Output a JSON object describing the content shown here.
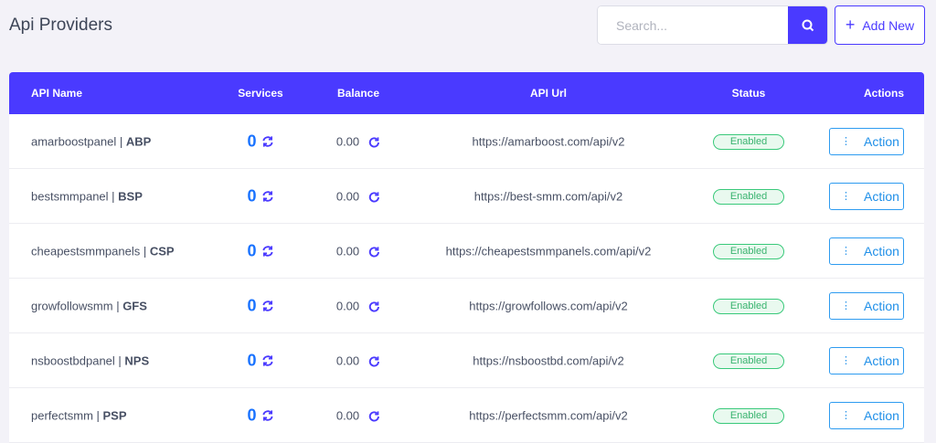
{
  "header": {
    "title": "Api Providers",
    "search_placeholder": "Search...",
    "add_new_label": "Add New"
  },
  "colors": {
    "accent": "#4a3aff",
    "enabled": "#39c97a",
    "action": "#2d9bf0"
  },
  "table": {
    "columns": [
      "API Name",
      "Services",
      "Balance",
      "API Url",
      "Status",
      "Actions"
    ],
    "rows": [
      {
        "name": "amarboostpanel",
        "code": "ABP",
        "services": "0",
        "balance": "0.00",
        "url": "https://amarboost.com/api/v2",
        "status": "Enabled",
        "action": "Action"
      },
      {
        "name": "bestsmmpanel",
        "code": "BSP",
        "services": "0",
        "balance": "0.00",
        "url": "https://best-smm.com/api/v2",
        "status": "Enabled",
        "action": "Action"
      },
      {
        "name": "cheapestsmmpanels",
        "code": "CSP",
        "services": "0",
        "balance": "0.00",
        "url": "https://cheapestsmmpanels.com/api/v2",
        "status": "Enabled",
        "action": "Action"
      },
      {
        "name": "growfollowsmm",
        "code": "GFS",
        "services": "0",
        "balance": "0.00",
        "url": "https://growfollows.com/api/v2",
        "status": "Enabled",
        "action": "Action"
      },
      {
        "name": "nsboostbdpanel",
        "code": "NPS",
        "services": "0",
        "balance": "0.00",
        "url": "https://nsboostbd.com/api/v2",
        "status": "Enabled",
        "action": "Action"
      },
      {
        "name": "perfectsmm",
        "code": "PSP",
        "services": "0",
        "balance": "0.00",
        "url": "https://perfectsmm.com/api/v2",
        "status": "Enabled",
        "action": "Action"
      }
    ]
  }
}
